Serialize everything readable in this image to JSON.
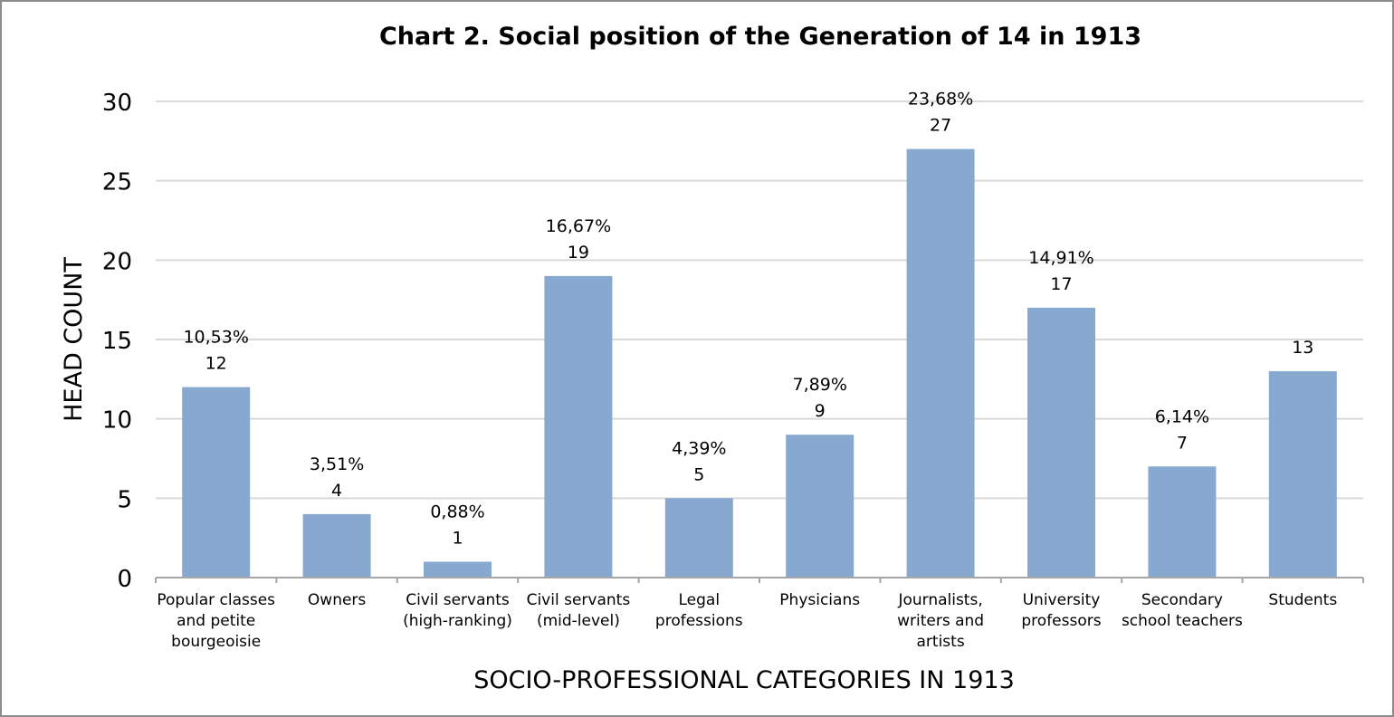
{
  "chart_data": {
    "type": "bar",
    "title": "Chart 2. Social position of the Generation of 14 in 1913",
    "xlabel": "SOCIO-PROFESSIONAL CATEGORIES IN 1913",
    "ylabel": "HEAD COUNT",
    "ylim": [
      0,
      30
    ],
    "yticks": [
      "0",
      "5",
      "10",
      "15",
      "20",
      "25",
      "30"
    ],
    "grid": true,
    "bar_color": "#87a9cf",
    "categories": [
      [
        "Popular classes",
        "and petite",
        "bourgeoisie"
      ],
      [
        "Owners"
      ],
      [
        "Civil servants",
        "(high-ranking)"
      ],
      [
        "Civil servants",
        "(mid-level)"
      ],
      [
        "Legal",
        "professions"
      ],
      [
        "Physicians"
      ],
      [
        "Journalists,",
        "writers and",
        "artists"
      ],
      [
        "University",
        "professors"
      ],
      [
        "Secondary",
        "school teachers"
      ],
      [
        "Students"
      ]
    ],
    "values": [
      12,
      4,
      1,
      19,
      5,
      9,
      27,
      17,
      7,
      13
    ],
    "percent_labels": [
      "10,53%",
      "3,51%",
      "0,88%",
      "16,67%",
      "4,39%",
      "7,89%",
      "23,68%",
      "14,91%",
      "6,14%",
      ""
    ],
    "value_labels": [
      "12",
      "4",
      "1",
      "19",
      "5",
      "9",
      "27",
      "17",
      "7",
      "13"
    ]
  }
}
